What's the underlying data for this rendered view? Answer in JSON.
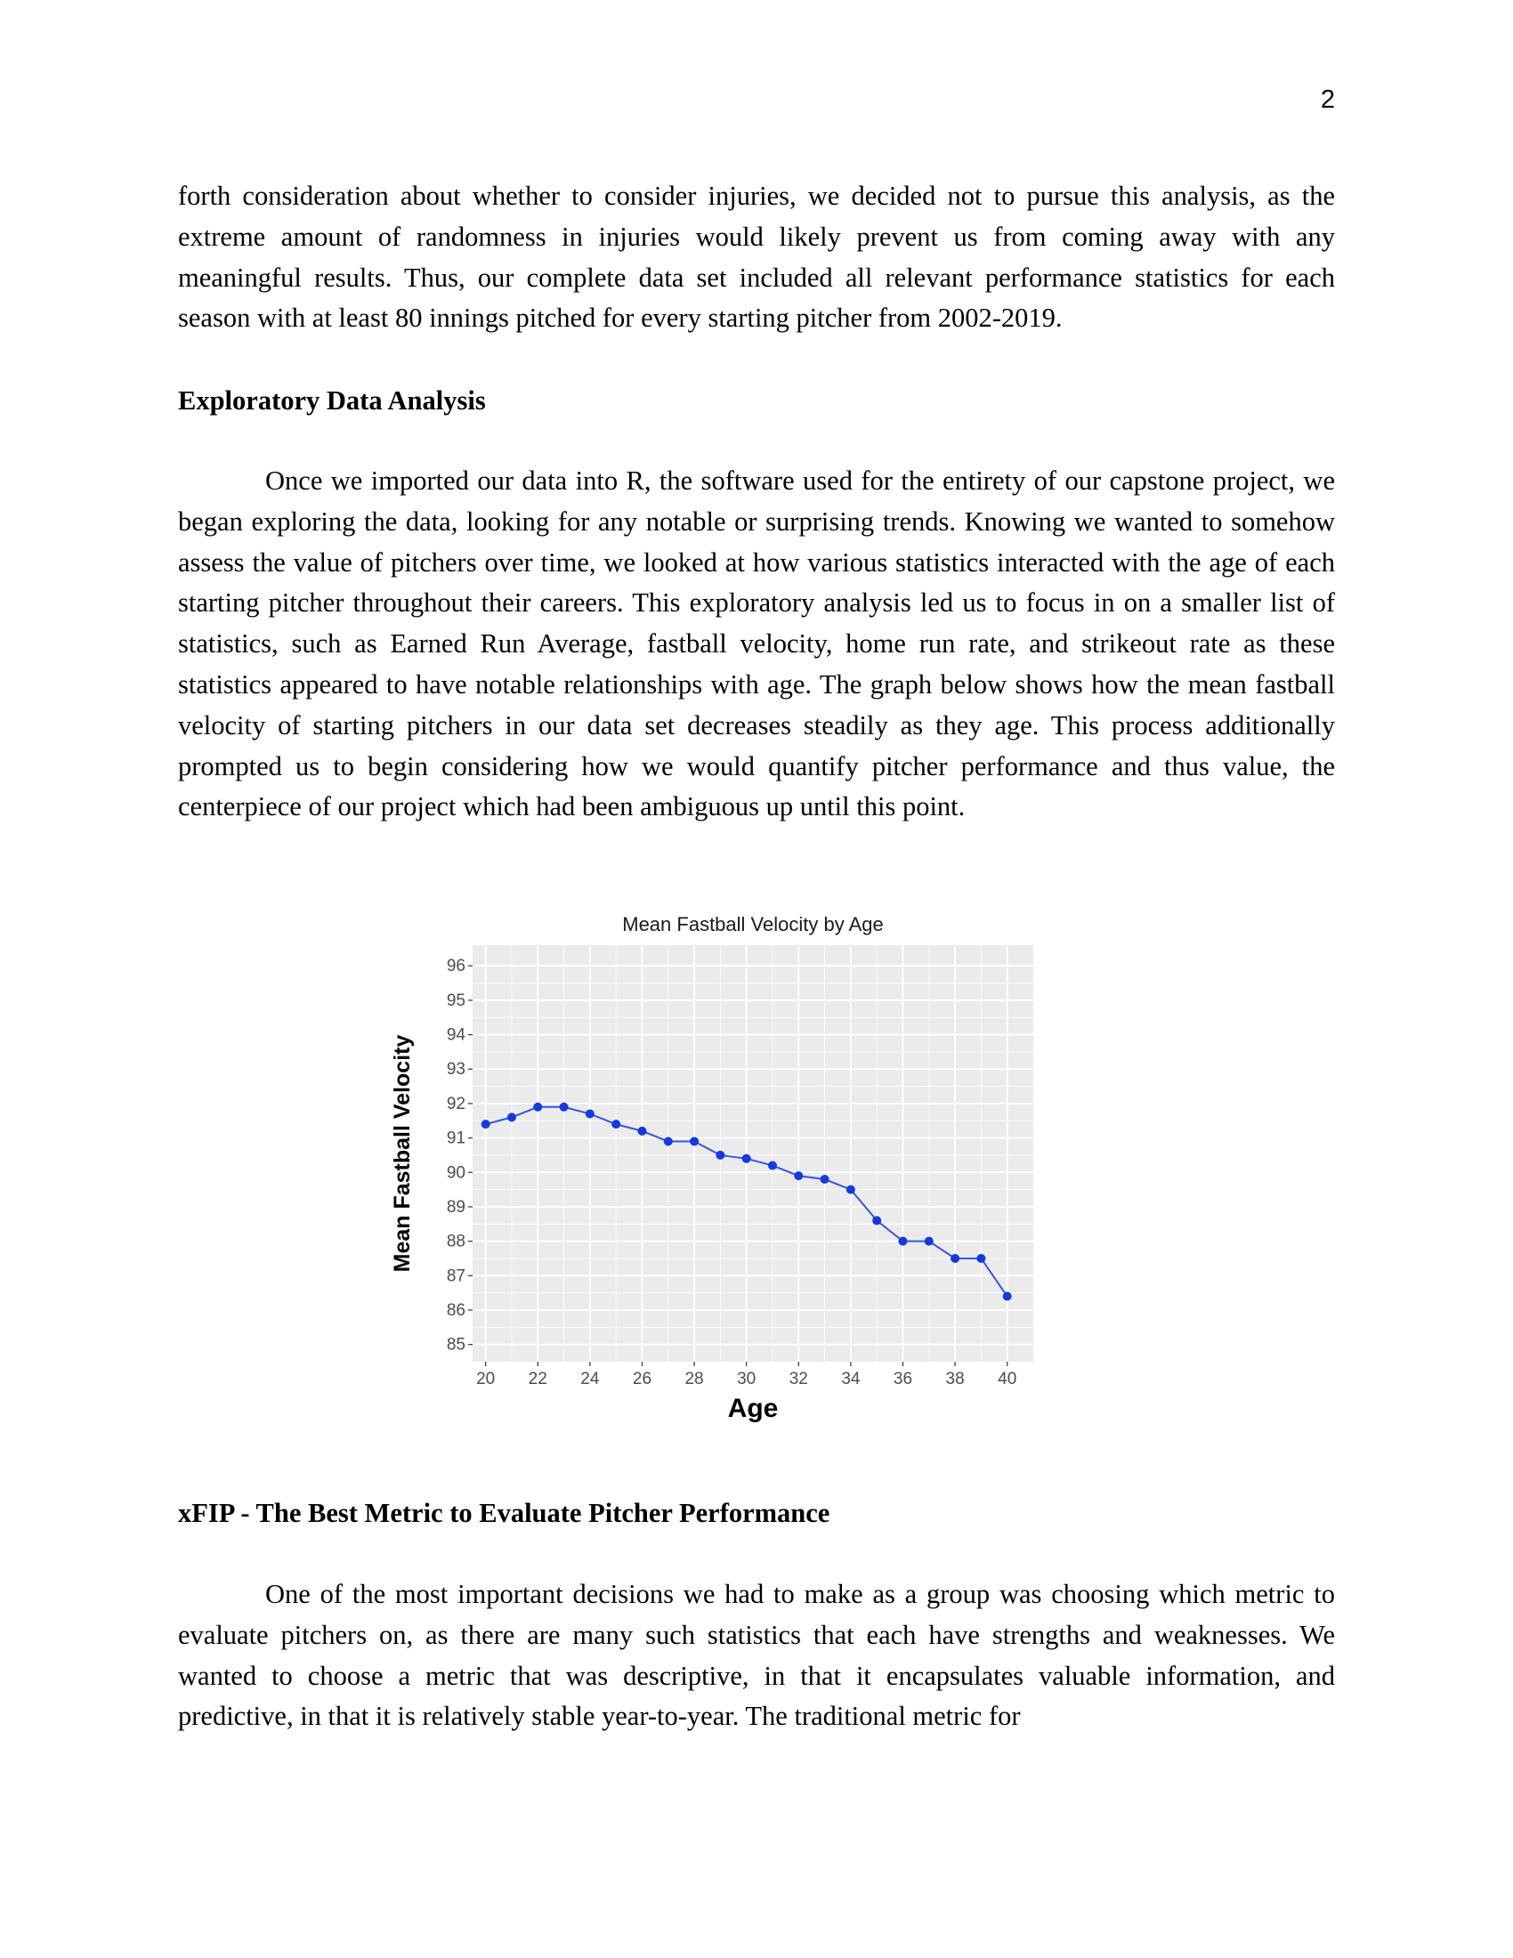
{
  "page_number": "2",
  "paragraphs": {
    "p1": "forth consideration about whether to consider injuries, we decided not to pursue this analysis, as the extreme amount of randomness in injuries would likely prevent us from coming away with any meaningful results. Thus, our complete data set included all relevant performance statistics for each season with at least 80 innings pitched for every starting pitcher from 2002-2019.",
    "p2": "Once we imported our data into R, the software used for the entirety of our capstone project, we began exploring the data, looking for any notable or surprising trends. Knowing we wanted to somehow assess the value of pitchers over time, we looked at how various statistics interacted with the age of each starting pitcher throughout their careers. This exploratory analysis led us to focus in on a smaller list of statistics, such as Earned Run Average, fastball velocity, home run rate, and strikeout rate as these statistics appeared to have notable relationships with age. The graph below shows how the mean fastball velocity of starting pitchers in our data set decreases steadily as they age. This process additionally prompted us to begin considering how we would quantify pitcher performance and thus value, the centerpiece of our project which had been ambiguous up until this point.",
    "p3": "One of the most important decisions we had to make as a group was choosing which metric to evaluate pitchers on, as there are many such statistics that each have strengths and weaknesses. We wanted to choose a metric that was descriptive, in that it encapsulates valuable information, and predictive, in that it is relatively stable year-to-year. The traditional metric for"
  },
  "headings": {
    "h1": "Exploratory Data Analysis",
    "h2": "xFIP - The Best Metric to Evaluate Pitcher Performance"
  },
  "chart_data": {
    "type": "line",
    "title": "Mean Fastball Velocity by Age",
    "xlabel": "Age",
    "ylabel": "Mean Fastball Velocity",
    "xlim": [
      19.5,
      41
    ],
    "ylim": [
      84.5,
      96.6
    ],
    "xticks": [
      20,
      22,
      24,
      26,
      28,
      30,
      32,
      34,
      36,
      38,
      40
    ],
    "yticks": [
      85,
      86,
      87,
      88,
      89,
      90,
      91,
      92,
      93,
      94,
      95,
      96
    ],
    "x": [
      20,
      21,
      22,
      23,
      24,
      25,
      26,
      27,
      28,
      29,
      30,
      31,
      32,
      33,
      34,
      35,
      36,
      37,
      38,
      39,
      40
    ],
    "y": [
      91.4,
      91.6,
      91.9,
      91.9,
      91.7,
      91.4,
      91.2,
      90.9,
      90.9,
      90.5,
      90.4,
      90.2,
      89.9,
      89.8,
      89.5,
      88.6,
      88.0,
      88.0,
      87.5,
      87.5,
      86.4
    ],
    "grid": true,
    "colors": {
      "line": "#3557dc",
      "point": "#1539e0",
      "panel": "#ebebeb",
      "grid": "#ffffff"
    }
  }
}
